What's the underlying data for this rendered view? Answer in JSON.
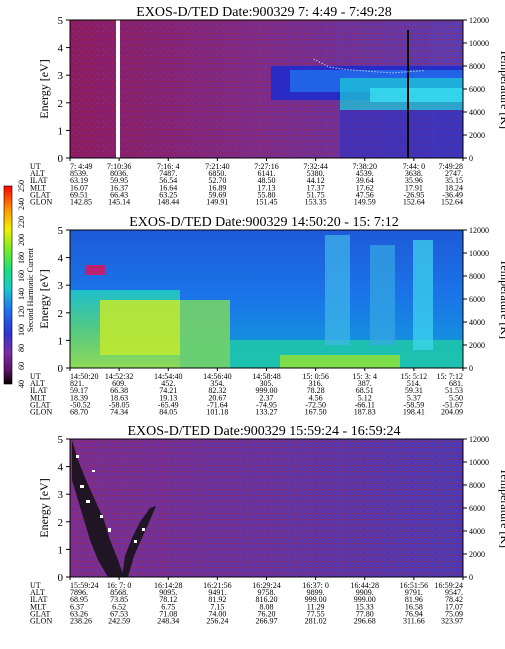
{
  "figure": {
    "colorbar_label": "Second Harmonic Current",
    "colorbar_ticks": [
      "40",
      "60",
      "80",
      "100",
      "120",
      "140",
      "160",
      "180",
      "200",
      "220",
      "240",
      "250"
    ]
  },
  "chart_data": [
    {
      "type": "heatmap",
      "title": "EXOS-D/TED   Date:900329   7: 4:49 - 7:49:28",
      "ylabel": "Energy [eV]",
      "y2label": "Temperature [K]",
      "ylim": [
        0,
        5
      ],
      "y2lim": [
        0,
        12000
      ],
      "yticks": [
        "0",
        "1",
        "2",
        "3",
        "4",
        "5"
      ],
      "y2ticks": [
        "0",
        "2000",
        "4000",
        "6000",
        "8000",
        "10000",
        "12000"
      ],
      "row_labels": [
        "UT",
        "ALT",
        "ILAT",
        "MLT",
        "GLAT",
        "GLON"
      ],
      "columns": [
        [
          "7: 4:49",
          "8539.",
          "63.19",
          "16.07",
          "69.51",
          "142.85"
        ],
        [
          "7:10:36",
          "8036.",
          "59.95",
          "16.37",
          "66.43",
          "145.14"
        ],
        [
          "7:16: 4",
          "7487.",
          "56.54",
          "16.64",
          "63.25",
          "148.44"
        ],
        [
          "7:21:40",
          "6850.",
          "52.70",
          "16.89",
          "59.69",
          "149.91"
        ],
        [
          "7:27:16",
          "6141.",
          "48.50",
          "17.13",
          "55.80",
          "151.45"
        ],
        [
          "7:32:44",
          "5380.",
          "44.12",
          "17.37",
          "51.75",
          "153.35"
        ],
        [
          "7:38:20",
          "4539.",
          "39.64",
          "17.62",
          "47.56",
          "149.59"
        ],
        [
          "7:44: 0",
          "3638.",
          "35.96",
          "17.91",
          "-26.95",
          "152.64"
        ],
        [
          "7:49:28",
          "2747.",
          "35.15",
          "18.24",
          "-36.49",
          "152.64"
        ]
      ],
      "temperature_trace": [
        [
          0.62,
          8600
        ],
        [
          0.66,
          7900
        ],
        [
          0.7,
          7700
        ],
        [
          0.74,
          7600
        ],
        [
          0.78,
          7500
        ],
        [
          0.82,
          7400
        ],
        [
          0.86,
          7500
        ],
        [
          0.9,
          7600
        ]
      ]
    },
    {
      "type": "heatmap",
      "title": "EXOS-D/TED   Date:900329   14:50:20 - 15: 7:12",
      "ylabel": "Energy [eV]",
      "y2label": "Temperature [K]",
      "ylim": [
        0,
        5
      ],
      "y2lim": [
        0,
        12000
      ],
      "yticks": [
        "0",
        "1",
        "2",
        "3",
        "4",
        "5"
      ],
      "y2ticks": [
        "0",
        "2000",
        "4000",
        "6000",
        "8000",
        "10000",
        "12000"
      ],
      "row_labels": [
        "UT",
        "ALT",
        "ILAT",
        "MLT",
        "GLAT",
        "GLON"
      ],
      "columns": [
        [
          "14:50:20",
          "821.",
          "59.17",
          "18.39",
          "-50.52",
          "68.70"
        ],
        [
          "14:52:32",
          "609.",
          "66.38",
          "18.63",
          "-58.05",
          "74.34"
        ],
        [
          "14:54:40",
          "452.",
          "74.21",
          "19.13",
          "-65.49",
          "84.05"
        ],
        [
          "14:56:40",
          "354.",
          "82.32",
          "20.67",
          "-71.64",
          "101.18"
        ],
        [
          "14:58:48",
          "305.",
          "999.00",
          "2.37",
          "-74.95",
          "133.27"
        ],
        [
          "15: 0:56",
          "316.",
          "78.28",
          "4.56",
          "-72.50",
          "167.50"
        ],
        [
          "15: 3: 4",
          "387.",
          "68.51",
          "5.12",
          "-66.11",
          "187.83"
        ],
        [
          "15: 5:12",
          "514.",
          "59.31",
          "5.37",
          "-58.59",
          "198.41"
        ],
        [
          "15: 7:12",
          "681.",
          "51.53",
          "5.50",
          "-51.67",
          "204.09"
        ]
      ]
    },
    {
      "type": "heatmap",
      "title": "EXOS-D/TED   Date:900329   15:59:24 - 16:59:24",
      "ylabel": "Energy [eV]",
      "y2label": "Temperature [K]",
      "ylim": [
        0,
        5
      ],
      "y2lim": [
        0,
        12000
      ],
      "yticks": [
        "0",
        "1",
        "2",
        "3",
        "4",
        "5"
      ],
      "y2ticks": [
        "0",
        "2000",
        "4000",
        "6000",
        "8000",
        "10000",
        "12000"
      ],
      "row_labels": [
        "UT",
        "ALT",
        "ILAT",
        "MLT",
        "GLAT",
        "GLON"
      ],
      "columns": [
        [
          "15:59:24",
          "7896.",
          "68.95",
          "6.37",
          "63.26",
          "238.26"
        ],
        [
          "16: 7: 0",
          "8568.",
          "73.85",
          "6.52",
          "67.53",
          "242.59"
        ],
        [
          "16:14:28",
          "9095.",
          "78.12",
          "6.75",
          "71.08",
          "248.34"
        ],
        [
          "16:21:56",
          "9491.",
          "81.92",
          "7.15",
          "74.00",
          "256.24"
        ],
        [
          "16:29:24",
          "9758.",
          "816.20",
          "8.08",
          "76.20",
          "266.97"
        ],
        [
          "16:37: 0",
          "9899.",
          "999.00",
          "11.29",
          "77.55",
          "281.02"
        ],
        [
          "16:44:28",
          "9909.",
          "999.00",
          "15.33",
          "77.80",
          "296.68"
        ],
        [
          "16:51:56",
          "9791.",
          "81.96",
          "16.58",
          "76.94",
          "311.66"
        ],
        [
          "16:59:24",
          "9547.",
          "78.42",
          "17.07",
          "75.09",
          "323.97"
        ]
      ]
    }
  ]
}
